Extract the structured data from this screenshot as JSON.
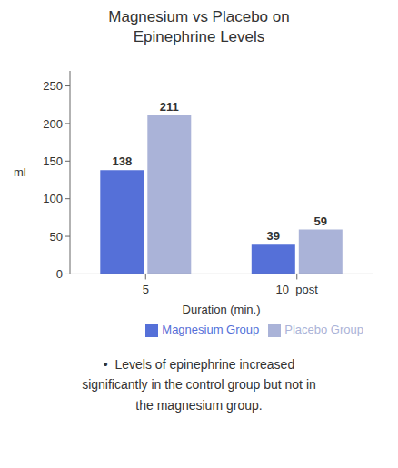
{
  "chart_data": {
    "type": "bar",
    "title": "Magnesium vs Placebo on\nEpinephrine Levels",
    "xlabel": "Duration (min.)",
    "ylabel": "ml",
    "categories": [
      "5",
      "10  post"
    ],
    "series": [
      {
        "name": "Magnesium Group",
        "color": "#5570d8",
        "values": [
          138,
          39
        ]
      },
      {
        "name": "Placebo Group",
        "color": "#aab3d8",
        "values": [
          211,
          59
        ]
      }
    ],
    "ylim": [
      0,
      270
    ],
    "yticks": [
      0,
      50,
      100,
      150,
      200,
      250
    ],
    "grid": false,
    "legend": "lower right",
    "data_labels": true,
    "annotation": "•  Levels of epinephrine increased\nsignificantly in the control group but not in\nthe magnesium group."
  }
}
